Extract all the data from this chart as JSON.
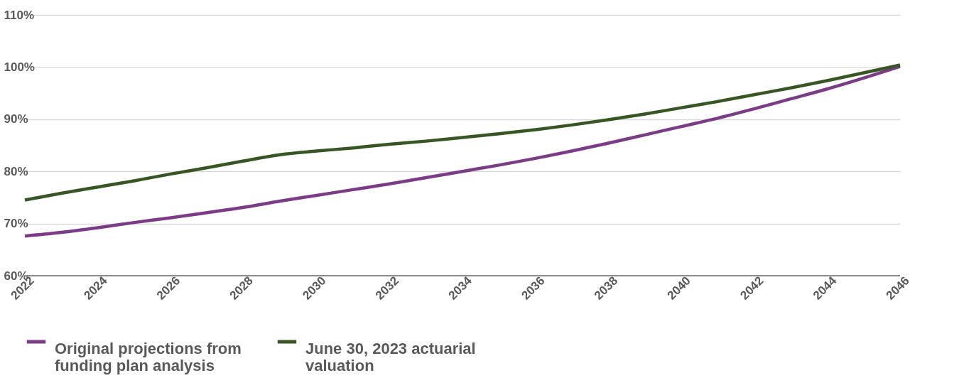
{
  "chart_data": {
    "type": "line",
    "x": [
      2022,
      2023,
      2024,
      2025,
      2026,
      2027,
      2028,
      2029,
      2030,
      2031,
      2032,
      2033,
      2034,
      2035,
      2036,
      2037,
      2038,
      2039,
      2040,
      2041,
      2042,
      2043,
      2044,
      2045,
      2046
    ],
    "series": [
      {
        "name": "Original projections from funding plan analysis",
        "color": "#7b3b86",
        "values": [
          67.6,
          68.3,
          69.2,
          70.2,
          71.1,
          72.1,
          73.1,
          74.3,
          75.4,
          76.5,
          77.6,
          78.8,
          80.0,
          81.2,
          82.5,
          83.9,
          85.4,
          87.0,
          88.6,
          90.2,
          92.0,
          93.9,
          95.8,
          97.9,
          100.1
        ]
      },
      {
        "name": "June 30, 2023 actuarial valuation",
        "color": "#375623",
        "values": [
          74.5,
          75.8,
          77.0,
          78.2,
          79.5,
          80.7,
          82.0,
          83.2,
          83.9,
          84.5,
          85.2,
          85.8,
          86.5,
          87.2,
          88.0,
          88.9,
          89.9,
          91.0,
          92.2,
          93.4,
          94.7,
          96.0,
          97.4,
          98.9,
          100.4
        ]
      }
    ],
    "xlim": [
      2022,
      2046
    ],
    "xticks": [
      2022,
      2024,
      2026,
      2028,
      2030,
      2032,
      2034,
      2036,
      2038,
      2040,
      2042,
      2044,
      2046
    ],
    "ylim": [
      60,
      110
    ],
    "yticks": [
      {
        "value": 60,
        "label": "60%"
      },
      {
        "value": 70,
        "label": "70%"
      },
      {
        "value": 80,
        "label": "80%"
      },
      {
        "value": 90,
        "label": "90%"
      },
      {
        "value": 100,
        "label": "100%"
      },
      {
        "value": 110,
        "label": "110%"
      }
    ],
    "grid": "y",
    "legend": "bottom",
    "marker": "none",
    "line_style": "solid"
  }
}
